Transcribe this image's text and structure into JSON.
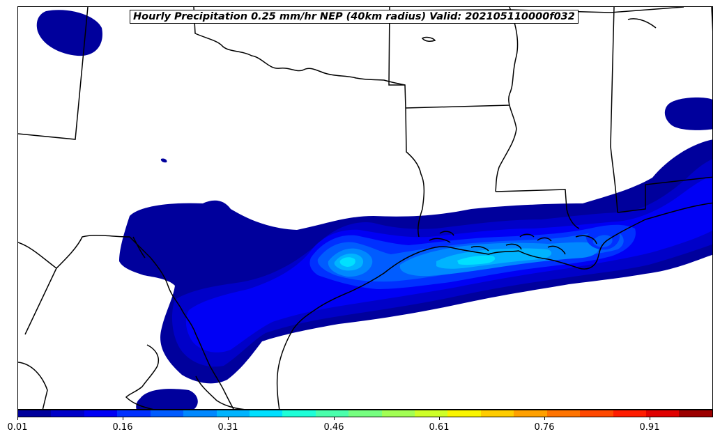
{
  "title": "Hourly Precipitation 0.25 mm/hr NEP (40km radius) Valid: 202105110000f032",
  "colorbar": {
    "colors": [
      "#00009c",
      "#0000c8",
      "#0000f5",
      "#0030ff",
      "#005cff",
      "#0088ff",
      "#00b4ff",
      "#00e0ff",
      "#1effd8",
      "#4affac",
      "#76ff80",
      "#a2ff54",
      "#ceff28",
      "#faf500",
      "#ffcc00",
      "#ffa000",
      "#ff7400",
      "#ff4800",
      "#ff1c00",
      "#e00000",
      "#9c0000"
    ],
    "ticks": [
      "0.01",
      "0.16",
      "0.31",
      "0.46",
      "0.61",
      "0.76",
      "0.91"
    ],
    "tick_values": [
      0.01,
      0.16,
      0.31,
      0.46,
      0.61,
      0.76,
      0.91
    ],
    "range": [
      0.01,
      1.0
    ]
  },
  "map": {
    "region": "Southern United States / Gulf Coast",
    "boundary_color": "#000000",
    "precip_colors": {
      "lowest": "#00009c",
      "low": "#0000c8",
      "mid_low": "#0000f5",
      "mid": "#0030ff",
      "mid_high": "#005cff",
      "high": "#0088ff",
      "higher": "#00b4ff",
      "peak": "#00e0ff"
    }
  }
}
